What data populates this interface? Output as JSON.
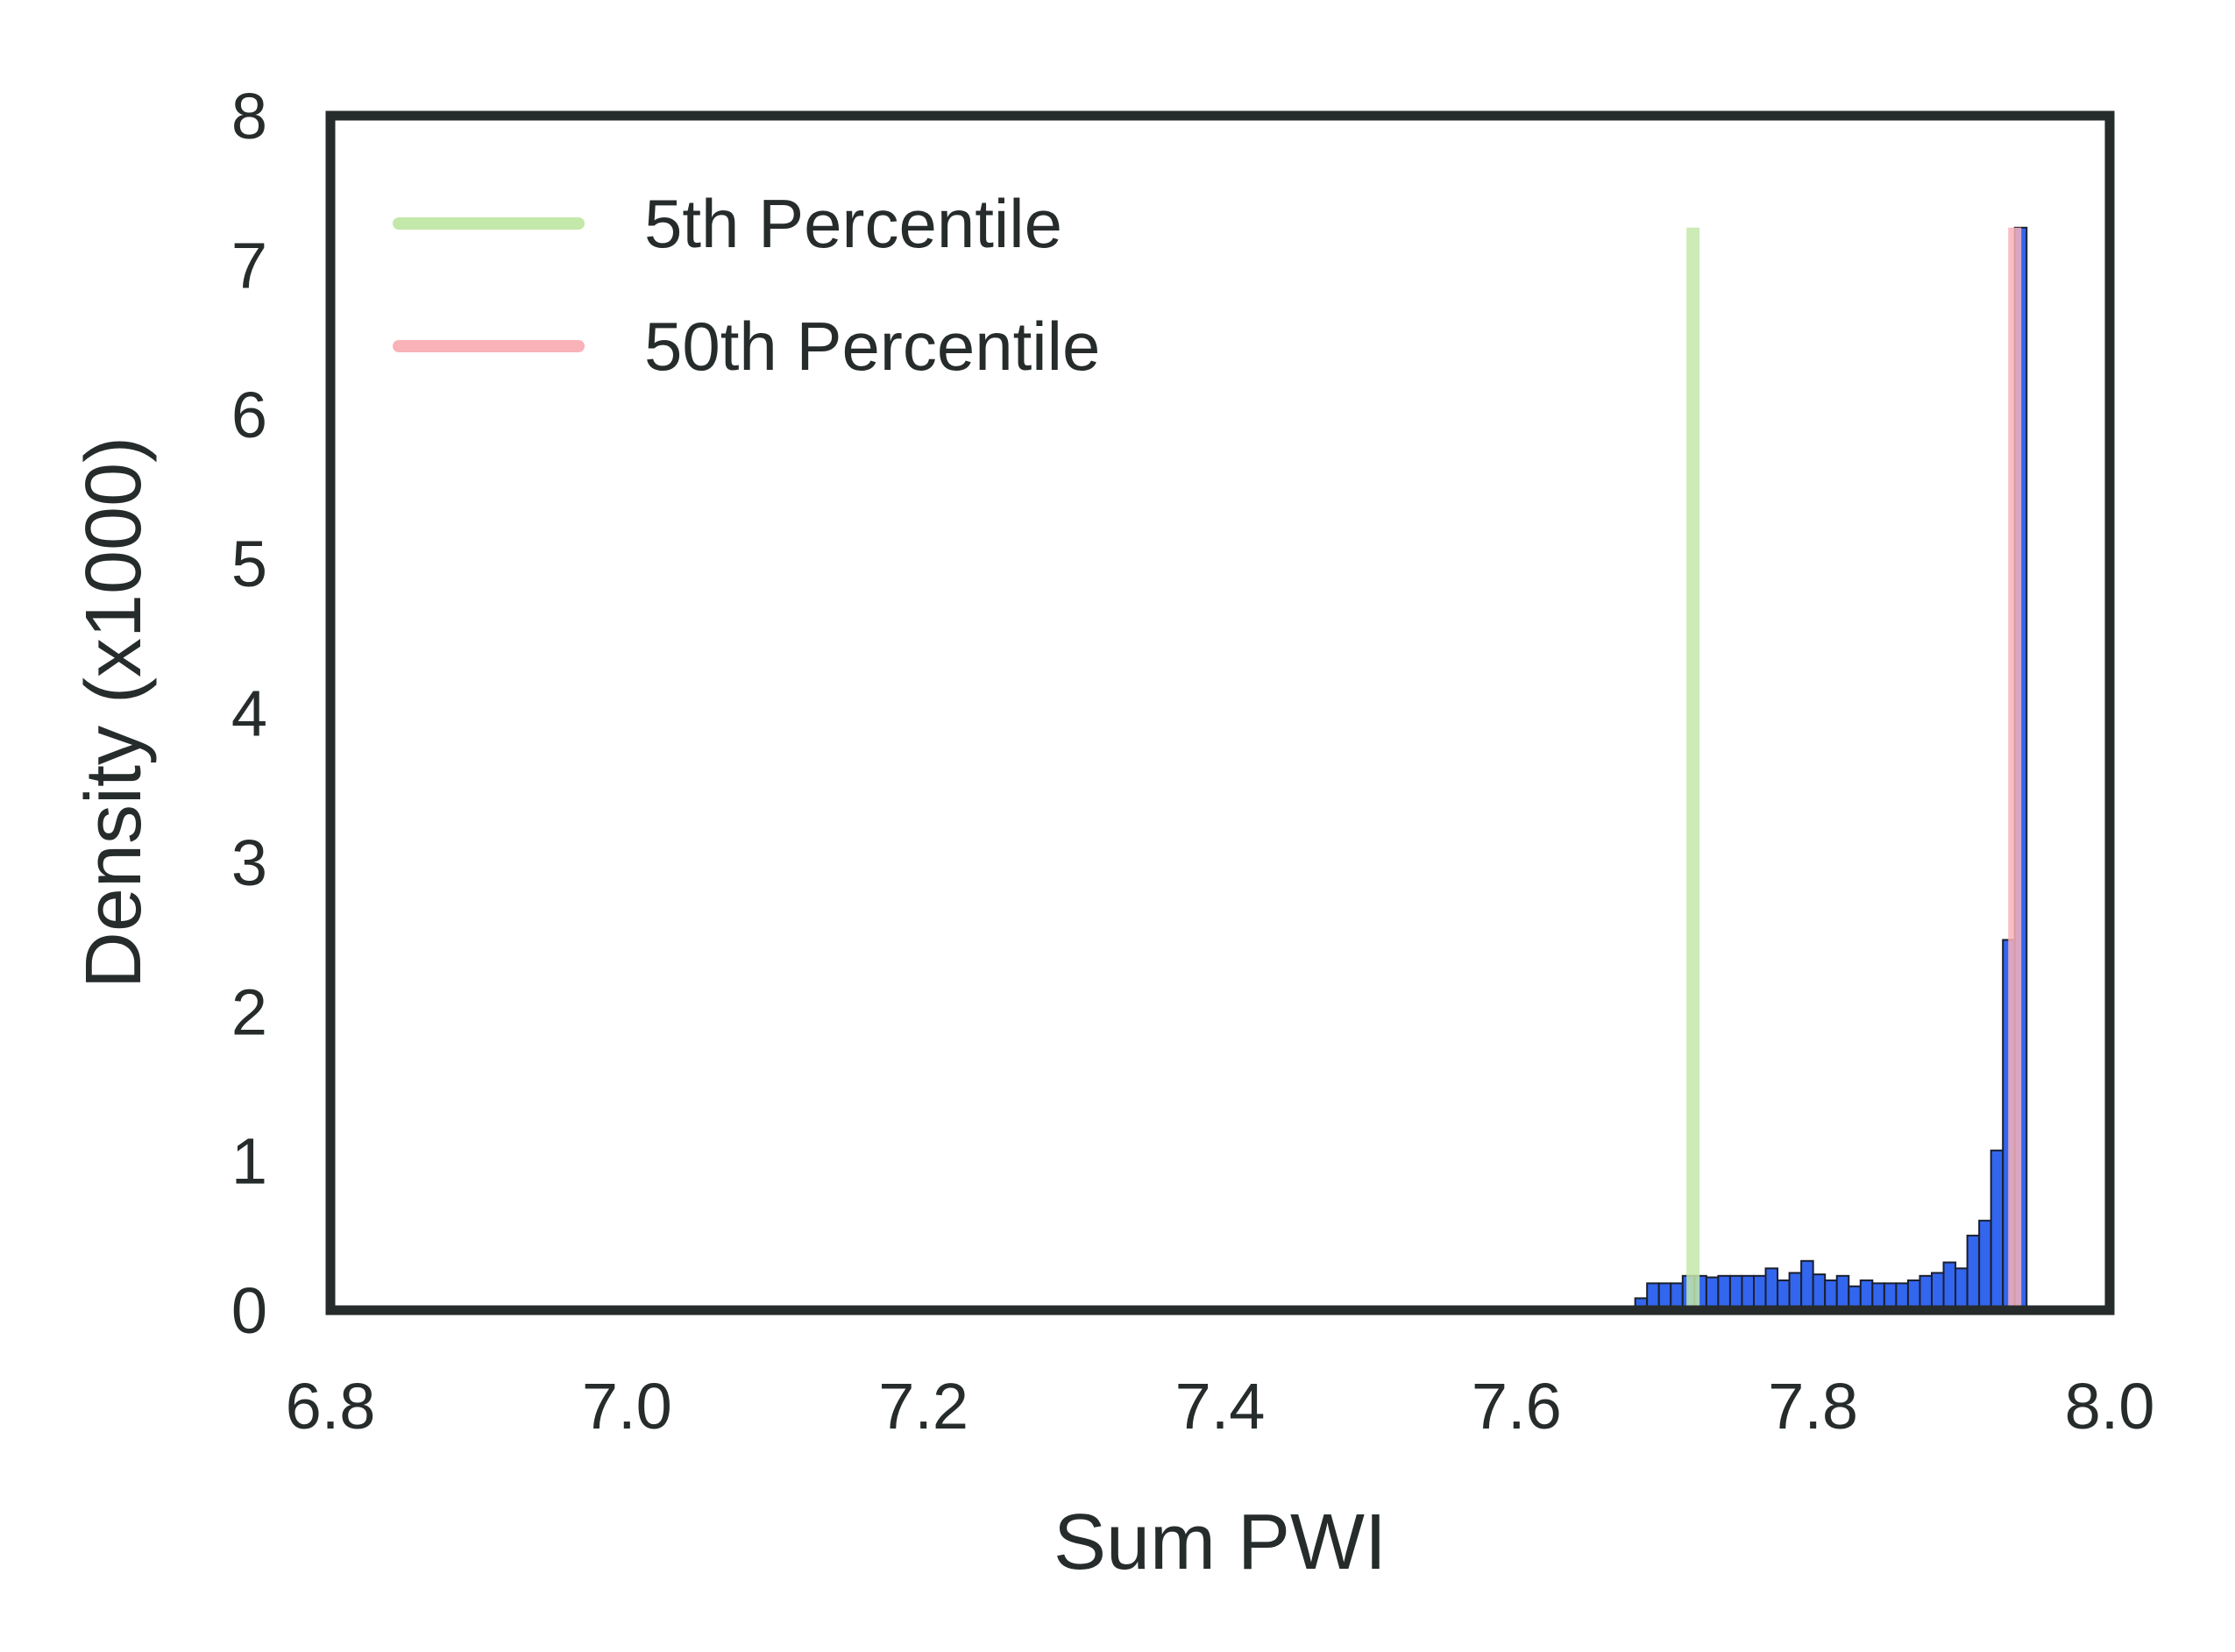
{
  "chart_data": {
    "type": "bar",
    "subtype": "histogram",
    "xlabel": "Sum PWI",
    "ylabel": "Density (x1000)",
    "xlim": [
      6.8,
      8.0
    ],
    "ylim": [
      0,
      8
    ],
    "xticks": [
      "6.8",
      "7.0",
      "7.2",
      "7.4",
      "7.6",
      "7.8",
      "8.0"
    ],
    "yticks": [
      "0",
      "1",
      "2",
      "3",
      "4",
      "5",
      "6",
      "7",
      "8"
    ],
    "grid": false,
    "legend_position": "top-left",
    "bin_width": 0.008,
    "bins": [
      {
        "x0": 7.68,
        "height": 0.08
      },
      {
        "x0": 7.688,
        "height": 0.18
      },
      {
        "x0": 7.696,
        "height": 0.18
      },
      {
        "x0": 7.704,
        "height": 0.18
      },
      {
        "x0": 7.712,
        "height": 0.23
      },
      {
        "x0": 7.72,
        "height": 0.23
      },
      {
        "x0": 7.728,
        "height": 0.22
      },
      {
        "x0": 7.736,
        "height": 0.23
      },
      {
        "x0": 7.744,
        "height": 0.23
      },
      {
        "x0": 7.752,
        "height": 0.23
      },
      {
        "x0": 7.76,
        "height": 0.23
      },
      {
        "x0": 7.768,
        "height": 0.28
      },
      {
        "x0": 7.776,
        "height": 0.2
      },
      {
        "x0": 7.784,
        "height": 0.25
      },
      {
        "x0": 7.792,
        "height": 0.33
      },
      {
        "x0": 7.8,
        "height": 0.24
      },
      {
        "x0": 7.808,
        "height": 0.2
      },
      {
        "x0": 7.816,
        "height": 0.23
      },
      {
        "x0": 7.824,
        "height": 0.16
      },
      {
        "x0": 7.832,
        "height": 0.2
      },
      {
        "x0": 7.84,
        "height": 0.18
      },
      {
        "x0": 7.848,
        "height": 0.18
      },
      {
        "x0": 7.856,
        "height": 0.18
      },
      {
        "x0": 7.864,
        "height": 0.2
      },
      {
        "x0": 7.872,
        "height": 0.23
      },
      {
        "x0": 7.88,
        "height": 0.25
      },
      {
        "x0": 7.888,
        "height": 0.32
      },
      {
        "x0": 7.896,
        "height": 0.28
      },
      {
        "x0": 7.904,
        "height": 0.5
      },
      {
        "x0": 7.912,
        "height": 0.6
      },
      {
        "x0": 7.92,
        "height": 1.07
      },
      {
        "x0": 7.928,
        "height": 2.48
      },
      {
        "x0": 7.936,
        "height": 7.25
      }
    ],
    "bar_color": "#3366ee",
    "bar_edge_color": "#1a1f2e",
    "series": [
      {
        "name": "5th Percentile",
        "x": 7.719,
        "ymax": 7.25,
        "color": "#c3e8a9"
      },
      {
        "name": "50th Percentile",
        "x": 7.936,
        "ymax": 7.25,
        "color": "#f8b2b8"
      }
    ],
    "axis_color": "#262b2b"
  }
}
